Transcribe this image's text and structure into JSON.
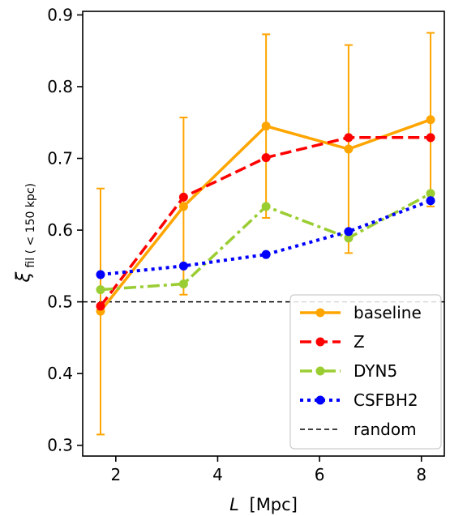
{
  "chart_data": {
    "type": "line",
    "xlabel": {
      "symbol": "L",
      "unit": "[Mpc]"
    },
    "ylabel": {
      "symbol": "ξ",
      "subscript": "fil ( < 150 kpc)"
    },
    "xlim": [
      1.35,
      8.45
    ],
    "ylim": [
      0.285,
      0.905
    ],
    "xticks": [
      2,
      4,
      6,
      8
    ],
    "yticks": [
      0.3,
      0.4,
      0.5,
      0.6,
      0.7,
      0.8,
      0.9
    ],
    "x": [
      1.7,
      3.33,
      4.95,
      6.57,
      8.18
    ],
    "grid": false,
    "legend_position": "lower-right",
    "series": [
      {
        "name": "baseline",
        "color": "#ffa500",
        "style": "solid",
        "values": [
          0.487,
          0.633,
          0.745,
          0.713,
          0.754
        ],
        "errors": [
          [
            0.315,
            0.658
          ],
          [
            0.51,
            0.757
          ],
          [
            0.617,
            0.873
          ],
          [
            0.568,
            0.858
          ],
          [
            0.633,
            0.875
          ]
        ]
      },
      {
        "name": "Z",
        "color": "#ff0000",
        "style": "dashed",
        "values": [
          0.494,
          0.646,
          0.701,
          0.729,
          0.729
        ]
      },
      {
        "name": "DYN5",
        "color": "#9acd32",
        "style": "dashdot",
        "values": [
          0.517,
          0.525,
          0.633,
          0.589,
          0.651
        ]
      },
      {
        "name": "CSFBH2",
        "color": "#0000ff",
        "style": "dotted",
        "values": [
          0.538,
          0.55,
          0.566,
          0.598,
          0.641
        ]
      }
    ],
    "reference_line": {
      "name": "random",
      "value": 0.5,
      "color": "#000000",
      "style": "dashed"
    }
  }
}
